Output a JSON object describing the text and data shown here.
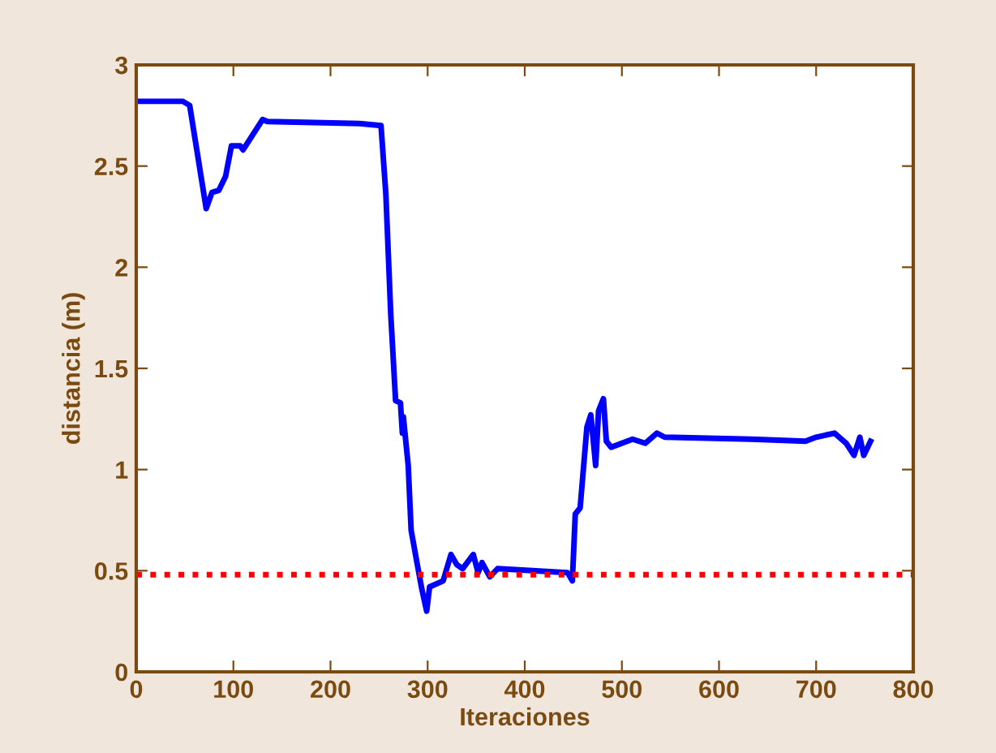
{
  "chart_data": {
    "type": "line",
    "xlabel": "Iteraciones",
    "ylabel": "distancia (m)",
    "xlim": [
      0,
      800
    ],
    "ylim": [
      0,
      3
    ],
    "xticks": [
      0,
      100,
      200,
      300,
      400,
      500,
      600,
      700,
      800
    ],
    "yticks": [
      0,
      0.5,
      1,
      1.5,
      2,
      2.5,
      3
    ],
    "grid": false,
    "legend": false,
    "line_style": "solid",
    "marker": "none",
    "series": [
      {
        "color": "#0000ff",
        "x": [
          0,
          48,
          55,
          72,
          78,
          85,
          92,
          98,
          107,
          110,
          130,
          135,
          230,
          252,
          257,
          262,
          267,
          272,
          274,
          275,
          280,
          283,
          289,
          294,
          299,
          302,
          316,
          324,
          330,
          336,
          347,
          352,
          356,
          364,
          372,
          444,
          449,
          452,
          457,
          464,
          468,
          473,
          476,
          481,
          484,
          489,
          511,
          524,
          536,
          544,
          633,
          689,
          700,
          719,
          731,
          739,
          745,
          749,
          756
        ],
        "values": [
          2.82,
          2.82,
          2.8,
          2.29,
          2.37,
          2.38,
          2.45,
          2.6,
          2.6,
          2.58,
          2.73,
          2.72,
          2.71,
          2.7,
          2.36,
          1.77,
          1.34,
          1.33,
          1.18,
          1.26,
          1.02,
          0.7,
          0.54,
          0.41,
          0.3,
          0.42,
          0.45,
          0.58,
          0.53,
          0.51,
          0.58,
          0.49,
          0.54,
          0.47,
          0.51,
          0.49,
          0.45,
          0.78,
          0.81,
          1.21,
          1.27,
          1.02,
          1.29,
          1.35,
          1.14,
          1.11,
          1.15,
          1.13,
          1.18,
          1.16,
          1.15,
          1.14,
          1.16,
          1.18,
          1.13,
          1.07,
          1.16,
          1.07,
          1.14
        ]
      }
    ],
    "ref_lines": [
      {
        "axis": "y",
        "value": 0.48,
        "color": "#ff0000",
        "line_style": "dotted"
      }
    ]
  }
}
